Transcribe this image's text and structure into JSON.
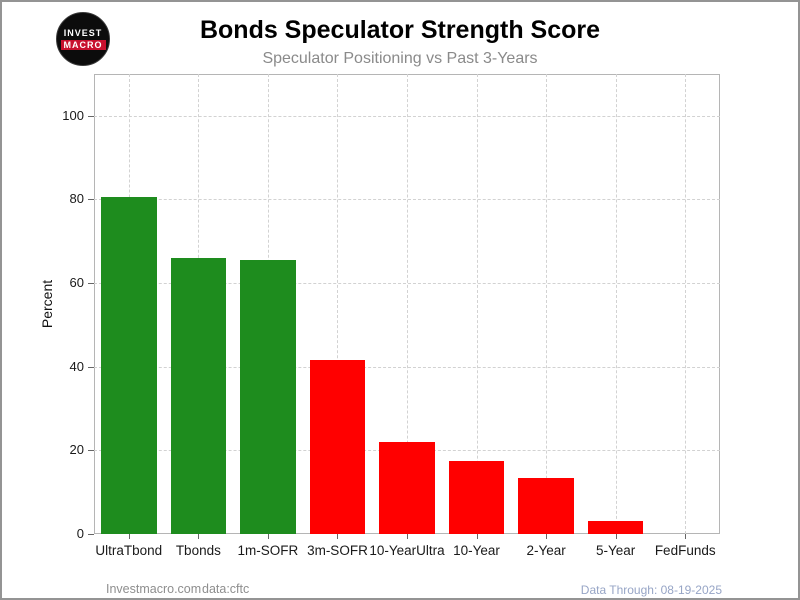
{
  "logo": {
    "line1": "INVEST",
    "line2": "MACRO"
  },
  "footer": {
    "left": "Investmacro.com",
    "source": "data:cftc",
    "right": "Data Through: 08-19-2025"
  },
  "chart_data": {
    "type": "bar",
    "title": "Bonds Speculator Strength Score",
    "subtitle": "Speculator Positioning vs Past 3-Years",
    "xlabel": "",
    "ylabel": "Percent",
    "categories": [
      "UltraTbond",
      "Tbonds",
      "1m-SOFR",
      "3m-SOFR",
      "10-YearUltra",
      "10-Year",
      "2-Year",
      "5-Year",
      "FedFunds"
    ],
    "values": [
      80.5,
      66,
      65.5,
      41.5,
      22,
      17.5,
      13.5,
      3,
      0
    ],
    "colors": [
      "#1e8c1e",
      "#1e8c1e",
      "#1e8c1e",
      "#ff0000",
      "#ff0000",
      "#ff0000",
      "#ff0000",
      "#ff0000",
      "#ff0000"
    ],
    "bar_color_strong": "#1e8c1e",
    "bar_color_weak": "#ff0000",
    "ylim": [
      0,
      110
    ],
    "yticks": [
      0,
      20,
      40,
      60,
      80,
      100
    ],
    "grid": "dashed-both-axes",
    "legend": "none"
  }
}
